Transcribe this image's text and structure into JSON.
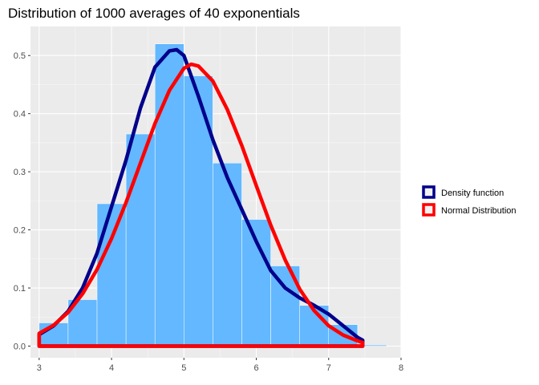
{
  "chart_data": {
    "type": "bar",
    "title": "Distribution of 1000 averages of 40 exponentials",
    "xlabel": "",
    "ylabel": "",
    "xlim": [
      2.88,
      8.0
    ],
    "ylim": [
      -0.02,
      0.55
    ],
    "x_ticks": [
      3,
      4,
      5,
      6,
      7,
      8
    ],
    "y_ticks": [
      0.0,
      0.1,
      0.2,
      0.3,
      0.4,
      0.5
    ],
    "grid": true,
    "legend_position": "right",
    "histogram": {
      "bin_width": 0.4,
      "bins": [
        {
          "start": 3.0,
          "end": 3.4,
          "density": 0.04
        },
        {
          "start": 3.4,
          "end": 3.8,
          "density": 0.08
        },
        {
          "start": 3.8,
          "end": 4.2,
          "density": 0.245
        },
        {
          "start": 4.2,
          "end": 4.6,
          "density": 0.365
        },
        {
          "start": 4.6,
          "end": 5.0,
          "density": 0.52
        },
        {
          "start": 5.0,
          "end": 5.4,
          "density": 0.465
        },
        {
          "start": 5.4,
          "end": 5.8,
          "density": 0.315
        },
        {
          "start": 5.8,
          "end": 6.2,
          "density": 0.218
        },
        {
          "start": 6.2,
          "end": 6.6,
          "density": 0.138
        },
        {
          "start": 6.6,
          "end": 7.0,
          "density": 0.07
        },
        {
          "start": 7.0,
          "end": 7.4,
          "density": 0.037
        },
        {
          "start": 7.4,
          "end": 7.8,
          "density": 0.002
        }
      ]
    },
    "series": [
      {
        "name": "Density function",
        "color": "#00008b",
        "x": [
          3.0,
          3.2,
          3.4,
          3.6,
          3.8,
          4.0,
          4.2,
          4.4,
          4.6,
          4.8,
          4.9,
          5.0,
          5.2,
          5.4,
          5.6,
          5.8,
          6.0,
          6.2,
          6.4,
          6.6,
          6.8,
          7.0,
          7.2,
          7.4,
          7.47
        ],
        "y": [
          0.02,
          0.035,
          0.06,
          0.1,
          0.16,
          0.24,
          0.32,
          0.41,
          0.48,
          0.508,
          0.51,
          0.5,
          0.43,
          0.355,
          0.29,
          0.235,
          0.18,
          0.13,
          0.1,
          0.083,
          0.07,
          0.055,
          0.035,
          0.015,
          0.01
        ]
      },
      {
        "name": "Normal Distribution",
        "color": "#ff0000",
        "x": [
          3.0,
          3.2,
          3.4,
          3.6,
          3.8,
          4.0,
          4.2,
          4.4,
          4.6,
          4.8,
          5.0,
          5.1,
          5.2,
          5.4,
          5.6,
          5.8,
          6.0,
          6.2,
          6.4,
          6.6,
          6.8,
          7.0,
          7.2,
          7.4,
          7.47
        ],
        "y": [
          0.022,
          0.036,
          0.058,
          0.09,
          0.132,
          0.185,
          0.247,
          0.315,
          0.383,
          0.44,
          0.478,
          0.485,
          0.482,
          0.456,
          0.407,
          0.345,
          0.276,
          0.208,
          0.148,
          0.098,
          0.061,
          0.035,
          0.019,
          0.009,
          0.006
        ]
      }
    ]
  }
}
